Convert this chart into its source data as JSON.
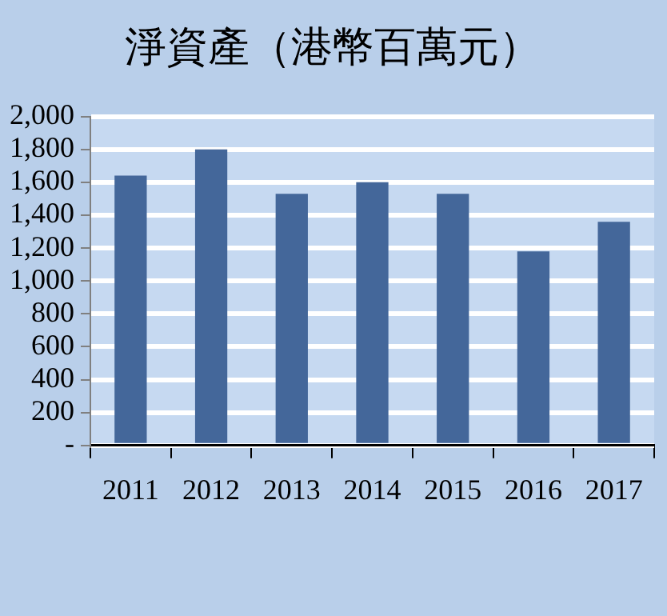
{
  "chart_data": {
    "type": "bar",
    "title": "淨資產（港幣百萬元）",
    "categories": [
      "2011",
      "2012",
      "2013",
      "2014",
      "2015",
      "2016",
      "2017"
    ],
    "values": [
      1640,
      1800,
      1530,
      1600,
      1530,
      1180,
      1360
    ],
    "color": "#44679a",
    "ylim": [
      0,
      2000
    ],
    "yticks": [
      {
        "value": 0,
        "label": "-"
      },
      {
        "value": 200,
        "label": "200"
      },
      {
        "value": 400,
        "label": "400"
      },
      {
        "value": 600,
        "label": "600"
      },
      {
        "value": 800,
        "label": "800"
      },
      {
        "value": 1000,
        "label": "1,000"
      },
      {
        "value": 1200,
        "label": "1,200"
      },
      {
        "value": 1400,
        "label": "1,400"
      },
      {
        "value": 1600,
        "label": "1,600"
      },
      {
        "value": 1800,
        "label": "1,800"
      },
      {
        "value": 2000,
        "label": "2,000"
      }
    ],
    "grid": "y",
    "legend": false
  }
}
